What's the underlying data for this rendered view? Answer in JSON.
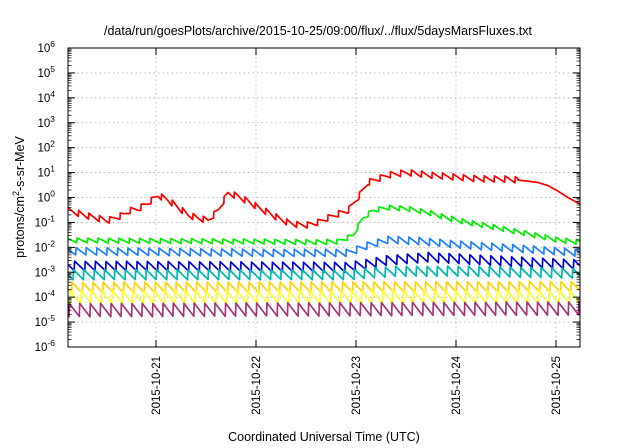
{
  "chart_data": {
    "type": "line",
    "title": "/data/run/goesPlots/archive/2015-10-25/09:00/flux/../flux/5daysMarsFluxes.txt",
    "xlabel": "Coordinated Universal Time (UTC)",
    "ylabel": "protons/cm²-s-sr-MeV",
    "ylabel_parts": [
      "protons/cm",
      "2",
      "-s-sr-MeV"
    ],
    "x_range_days": [
      0,
      5.12
    ],
    "x_tick_dates": [
      "2015-10-21",
      "2015-10-22",
      "2015-10-23",
      "2015-10-24",
      "2015-10-25"
    ],
    "x_tick_positions_days": [
      0.88,
      1.88,
      2.88,
      3.88,
      4.88
    ],
    "yscale": "log",
    "ylim": [
      1e-06,
      1000000.0
    ],
    "y_tick_labels": [
      {
        "base": "10",
        "exp": "-6"
      },
      {
        "base": "10",
        "exp": "-5"
      },
      {
        "base": "10",
        "exp": "-4"
      },
      {
        "base": "10",
        "exp": "-3"
      },
      {
        "base": "10",
        "exp": "-2"
      },
      {
        "base": "10",
        "exp": "-1"
      },
      {
        "base": "10",
        "exp": "0"
      },
      {
        "base": "10",
        "exp": "1"
      },
      {
        "base": "10",
        "exp": "2"
      },
      {
        "base": "10",
        "exp": "3"
      },
      {
        "base": "10",
        "exp": "4"
      },
      {
        "base": "10",
        "exp": "5"
      },
      {
        "base": "10",
        "exp": "6"
      }
    ],
    "grid": true,
    "sawtooth_period_days": 0.104,
    "series": [
      {
        "color": "#ff0000",
        "x": [
          0,
          0.2,
          0.4,
          0.55,
          0.62,
          0.7,
          0.8,
          0.9,
          1.0,
          1.1,
          1.2,
          1.3,
          1.4,
          1.5,
          1.6,
          1.7,
          1.8,
          1.9,
          2.0,
          2.1,
          2.2,
          2.3,
          2.4,
          2.5,
          2.6,
          2.7,
          2.8,
          2.9,
          2.95,
          3.0,
          3.2,
          3.4,
          3.6,
          3.8,
          4.0,
          4.2,
          4.4,
          4.5,
          4.6,
          4.7,
          4.8,
          4.9,
          5.0,
          5.1,
          5.12
        ],
        "y": [
          0.3,
          0.18,
          0.12,
          0.2,
          0.3,
          0.35,
          0.6,
          1.2,
          0.8,
          0.4,
          0.2,
          0.15,
          0.12,
          0.3,
          1.5,
          1.1,
          0.7,
          0.4,
          0.25,
          0.15,
          0.1,
          0.08,
          0.08,
          0.1,
          0.15,
          0.22,
          0.3,
          1.0,
          2.0,
          4.0,
          8.0,
          10.0,
          8.0,
          7.0,
          6.0,
          5.5,
          5.5,
          5.0,
          4.5,
          4.0,
          3.0,
          1.8,
          1.0,
          0.6,
          0.55
        ],
        "tooth_amplitude": 1.8,
        "tooth_end": 4.5
      },
      {
        "color": "#00ee00",
        "x": [
          0,
          1.0,
          2.0,
          2.5,
          2.7,
          2.85,
          2.95,
          3.05,
          3.2,
          3.4,
          3.6,
          3.8,
          4.0,
          4.3,
          4.6,
          4.9,
          5.12
        ],
        "y": [
          0.019,
          0.018,
          0.017,
          0.016,
          0.017,
          0.03,
          0.15,
          0.3,
          0.4,
          0.35,
          0.25,
          0.15,
          0.1,
          0.06,
          0.035,
          0.02,
          0.016
        ],
        "tooth_amplitude": 1.6
      },
      {
        "color": "#1e7fff",
        "x": [
          0,
          1.0,
          2.0,
          2.8,
          3.0,
          3.2,
          3.5,
          4.0,
          4.5,
          5.12
        ],
        "y": [
          0.007,
          0.0065,
          0.006,
          0.006,
          0.012,
          0.02,
          0.018,
          0.012,
          0.009,
          0.006
        ],
        "tooth_amplitude": 2.0
      },
      {
        "color": "#0000dd",
        "x": [
          0,
          2.8,
          3.2,
          3.6,
          4.2,
          5.12
        ],
        "y": [
          0.0018,
          0.0016,
          0.003,
          0.004,
          0.003,
          0.002
        ],
        "tooth_amplitude": 2.5
      },
      {
        "color": "#00b8b0",
        "x": [
          0,
          2.8,
          3.3,
          4.0,
          5.12
        ],
        "y": [
          0.0008,
          0.0008,
          0.0011,
          0.0011,
          0.0009
        ],
        "tooth_amplitude": 2.6
      },
      {
        "color": "#ffd400",
        "x": [
          0,
          5.12
        ],
        "y": [
          0.00024,
          0.00026
        ],
        "tooth_amplitude": 2.8
      },
      {
        "color": "#ffff33",
        "x": [
          0,
          5.12
        ],
        "y": [
          0.0001,
          0.0001
        ],
        "tooth_amplitude": 3.5
      },
      {
        "color": "#a3357a",
        "x": [
          0,
          5.12
        ],
        "y": [
          3e-05,
          3.5e-05
        ],
        "tooth_amplitude": 3.5
      }
    ]
  }
}
